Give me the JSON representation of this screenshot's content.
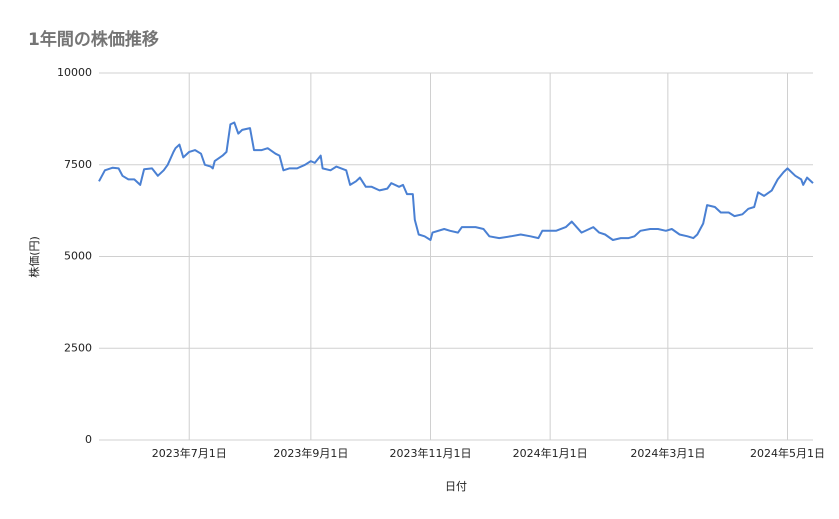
{
  "chart_data": {
    "type": "line",
    "title": "1年間の株価推移",
    "xlabel": "日付",
    "ylabel": "株価(円)",
    "x": [
      "2023-05-16",
      "2023-05-19",
      "2023-05-23",
      "2023-05-26",
      "2023-05-28",
      "2023-05-31",
      "2023-06-03",
      "2023-06-06",
      "2023-06-08",
      "2023-06-12",
      "2023-06-15",
      "2023-06-18",
      "2023-06-20",
      "2023-06-23",
      "2023-06-24",
      "2023-06-26",
      "2023-06-28",
      "2023-07-01",
      "2023-07-04",
      "2023-07-07",
      "2023-07-09",
      "2023-07-12",
      "2023-07-13",
      "2023-07-14",
      "2023-07-18",
      "2023-07-20",
      "2023-07-22",
      "2023-07-24",
      "2023-07-26",
      "2023-07-28",
      "2023-08-01",
      "2023-08-03",
      "2023-08-07",
      "2023-08-10",
      "2023-08-14",
      "2023-08-16",
      "2023-08-18",
      "2023-08-21",
      "2023-08-25",
      "2023-08-29",
      "2023-09-01",
      "2023-09-03",
      "2023-09-06",
      "2023-09-07",
      "2023-09-11",
      "2023-09-14",
      "2023-09-19",
      "2023-09-21",
      "2023-09-24",
      "2023-09-26",
      "2023-09-29",
      "2023-10-02",
      "2023-10-06",
      "2023-10-10",
      "2023-10-12",
      "2023-10-16",
      "2023-10-18",
      "2023-10-20",
      "2023-10-23",
      "2023-10-24",
      "2023-10-26",
      "2023-10-29",
      "2023-11-01",
      "2023-11-02",
      "2023-11-08",
      "2023-11-11",
      "2023-11-15",
      "2023-11-17",
      "2023-11-24",
      "2023-11-28",
      "2023-12-01",
      "2023-12-06",
      "2023-12-12",
      "2023-12-17",
      "2023-12-22",
      "2023-12-26",
      "2023-12-28",
      "2024-01-04",
      "2024-01-09",
      "2024-01-12",
      "2024-01-17",
      "2024-01-23",
      "2024-01-26",
      "2024-01-29",
      "2024-02-02",
      "2024-02-06",
      "2024-02-10",
      "2024-02-13",
      "2024-02-16",
      "2024-02-21",
      "2024-02-25",
      "2024-02-29",
      "2024-03-03",
      "2024-03-07",
      "2024-03-11",
      "2024-03-14",
      "2024-03-16",
      "2024-03-19",
      "2024-03-21",
      "2024-03-25",
      "2024-03-28",
      "2024-04-01",
      "2024-04-04",
      "2024-04-08",
      "2024-04-11",
      "2024-04-14",
      "2024-04-16",
      "2024-04-19",
      "2024-04-23",
      "2024-04-26",
      "2024-04-29",
      "2024-05-01",
      "2024-05-05",
      "2024-05-08",
      "2024-05-09",
      "2024-05-11",
      "2024-05-14"
    ],
    "series": [
      {
        "color": "#4a80d3",
        "values": [
          7050,
          7350,
          7420,
          7400,
          7200,
          7100,
          7100,
          6950,
          7380,
          7400,
          7200,
          7350,
          7500,
          7850,
          7950,
          8050,
          7700,
          7850,
          7900,
          7800,
          7500,
          7450,
          7400,
          7600,
          7750,
          7850,
          8600,
          8650,
          8350,
          8450,
          8500,
          7900,
          7900,
          7950,
          7800,
          7750,
          7350,
          7400,
          7400,
          7500,
          7600,
          7550,
          7750,
          7400,
          7350,
          7450,
          7350,
          6950,
          7050,
          7150,
          6900,
          6900,
          6800,
          6850,
          7000,
          6900,
          6950,
          6700,
          6700,
          6000,
          5600,
          5550,
          5450,
          5650,
          5750,
          5700,
          5650,
          5800,
          5800,
          5750,
          5550,
          5500,
          5550,
          5600,
          5550,
          5500,
          5700,
          5700,
          5800,
          5950,
          5650,
          5800,
          5650,
          5600,
          5450,
          5500,
          5500,
          5550,
          5700,
          5750,
          5750,
          5700,
          5750,
          5600,
          5550,
          5500,
          5600,
          5900,
          6400,
          6350,
          6200,
          6200,
          6100,
          6150,
          6300,
          6350,
          6750,
          6650,
          6800,
          7100,
          7300,
          7400,
          7200,
          7100,
          6950,
          7150,
          7000
        ]
      }
    ],
    "xlim": [
      "2023-05-16",
      "2024-05-14"
    ],
    "xticks": [
      {
        "value": "2023-07-01",
        "label": "2023年7月1日"
      },
      {
        "value": "2023-09-01",
        "label": "2023年9月1日"
      },
      {
        "value": "2023-11-01",
        "label": "2023年11月1日"
      },
      {
        "value": "2024-01-01",
        "label": "2024年1月1日"
      },
      {
        "value": "2024-03-01",
        "label": "2024年3月1日"
      },
      {
        "value": "2024-05-01",
        "label": "2024年5月1日"
      }
    ],
    "ylim": [
      0,
      10000
    ],
    "yticks": [
      0,
      2500,
      5000,
      7500,
      10000
    ],
    "grid": true
  }
}
